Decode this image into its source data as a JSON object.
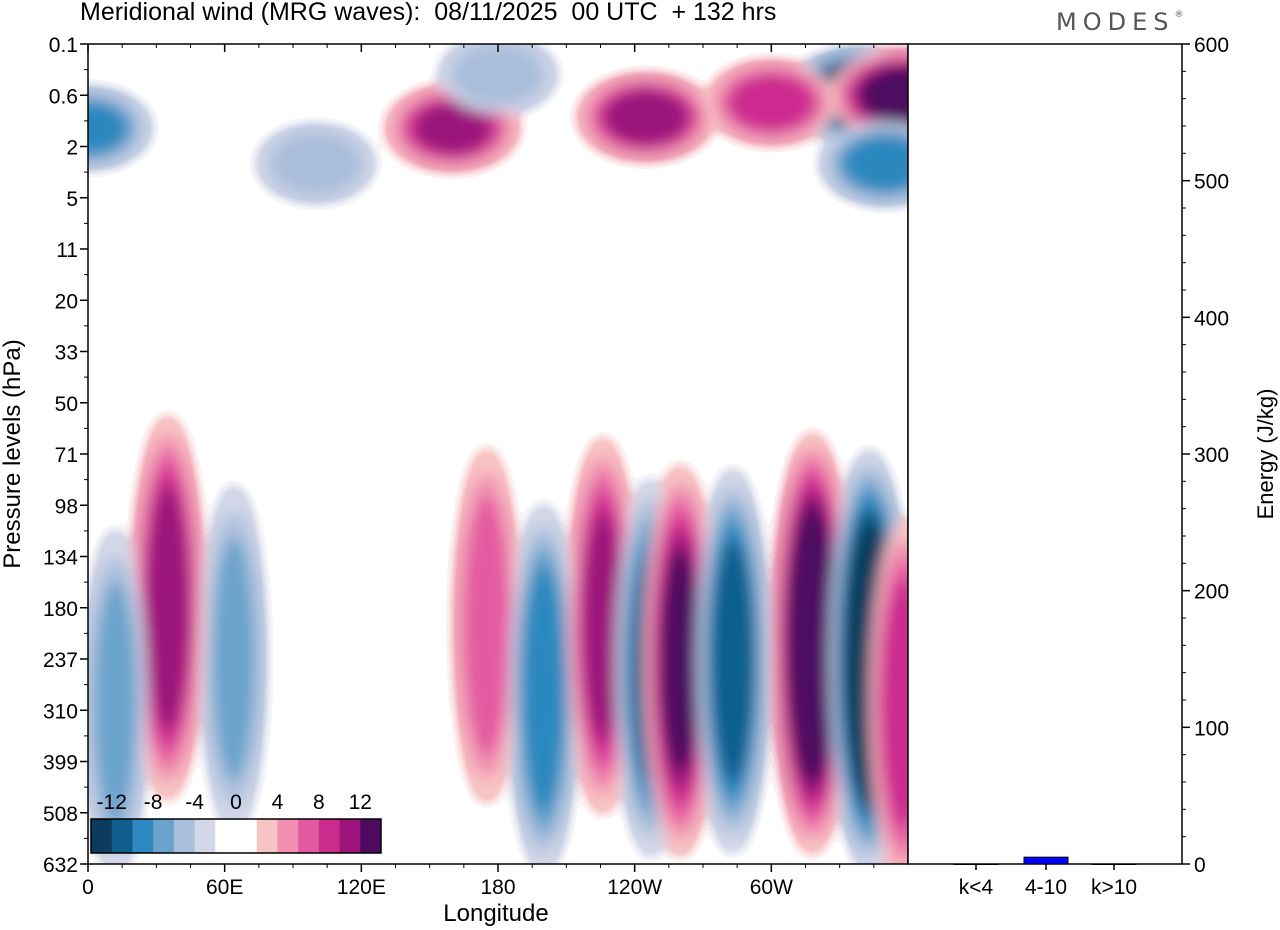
{
  "header": {
    "title": "Meridional wind (MRG waves):  08/11/2025  00 UTC  + 132 hrs",
    "brand": "MODES",
    "brand_mark": "®"
  },
  "colors": {
    "palette": [
      "#0b3c5d",
      "#0f5e8c",
      "#2c88bf",
      "#6ba3cc",
      "#a9bedb",
      "#d3d7e8",
      "#ffffff",
      "#ffffff",
      "#f7c4c4",
      "#f08db0",
      "#e45aa1",
      "#cc2b8e",
      "#9b137b",
      "#4d0a60"
    ]
  },
  "chart_data": [
    {
      "type": "heatmap",
      "title": "Meridional wind (MRG waves)",
      "xlabel": "Longitude",
      "ylabel": "Pressure levels (hPa)",
      "x_ticks": [
        "0",
        "60E",
        "120E",
        "180",
        "120W",
        "60W"
      ],
      "x_tick_degrees": [
        0,
        60,
        120,
        180,
        240,
        300
      ],
      "x_range_degrees": [
        0,
        360
      ],
      "y_ticks": [
        "0.1",
        "0.6",
        "2",
        "5",
        "11",
        "20",
        "33",
        "50",
        "71",
        "98",
        "134",
        "180",
        "237",
        "310",
        "399",
        "508",
        "632"
      ],
      "colorbar": {
        "labels": [
          "-12",
          "-8",
          "-4",
          "0",
          "4",
          "8",
          "12"
        ],
        "levels": [
          -14,
          -12,
          -10,
          -8,
          -6,
          -4,
          -2,
          0,
          2,
          4,
          6,
          8,
          10,
          12
        ]
      },
      "features": [
        {
          "lon": 340,
          "level": 0.6,
          "value": -16
        },
        {
          "lon": 358,
          "level": 0.6,
          "value": 14
        },
        {
          "lon": 300,
          "level": 0.8,
          "value": 9
        },
        {
          "lon": 245,
          "level": 1.2,
          "value": 11
        },
        {
          "lon": 160,
          "level": 1.5,
          "value": 10
        },
        {
          "lon": 0,
          "level": 1.5,
          "value": -8
        },
        {
          "lon": 180,
          "level": 0.4,
          "value": -5
        },
        {
          "lon": 100,
          "level": 3,
          "value": -5
        },
        {
          "lon": 350,
          "level": 3,
          "value": -9
        },
        {
          "lon": 35,
          "level": 180,
          "value": 11
        },
        {
          "lon": 12,
          "level": 300,
          "value": -6
        },
        {
          "lon": 64,
          "level": 237,
          "value": -6
        },
        {
          "lon": 175,
          "level": 200,
          "value": 7
        },
        {
          "lon": 200,
          "level": 280,
          "value": -9
        },
        {
          "lon": 226,
          "level": 200,
          "value": 10
        },
        {
          "lon": 247,
          "level": 250,
          "value": -10
        },
        {
          "lon": 260,
          "level": 240,
          "value": 12
        },
        {
          "lon": 283,
          "level": 240,
          "value": -11
        },
        {
          "lon": 318,
          "level": 220,
          "value": 16
        },
        {
          "lon": 343,
          "level": 240,
          "value": -16
        },
        {
          "lon": 358,
          "level": 300,
          "value": 9
        }
      ]
    },
    {
      "type": "bar",
      "ylabel": "Energy (J/kg)",
      "categories": [
        "k<4",
        "4-10",
        "k>10"
      ],
      "values": [
        0,
        5,
        0
      ],
      "ylim": [
        0,
        600
      ],
      "y_ticks": [
        "0",
        "100",
        "200",
        "300",
        "400",
        "500",
        "600"
      ],
      "bar_color": "#0000ff"
    }
  ]
}
